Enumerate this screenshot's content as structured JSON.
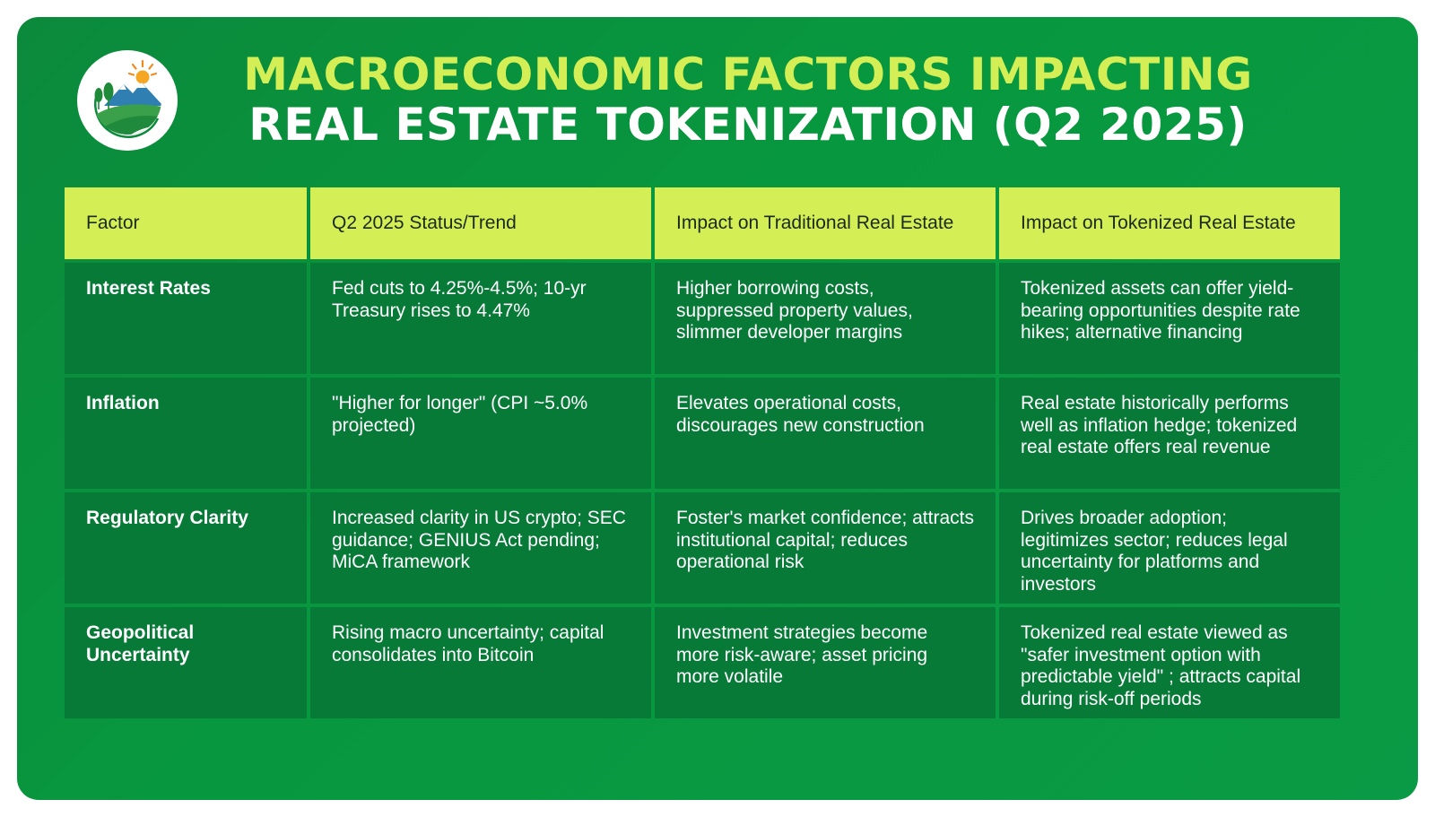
{
  "title": {
    "line1": "MACROECONOMIC FACTORS IMPACTING",
    "line2": "REAL ESTATE TOKENIZATION (Q2 2025)"
  },
  "logo": {
    "icon": "landscape-sun-logo-icon"
  },
  "colors": {
    "background": "#079a42",
    "header_fill": "#d4ef55",
    "row_fill": "#077a38",
    "title_accent": "#d4ef55"
  },
  "table": {
    "headers": [
      "Factor",
      "Q2 2025 Status/Trend",
      "Impact on Traditional Real Estate",
      "Impact on Tokenized Real Estate"
    ],
    "rows": [
      [
        "Interest Rates",
        "Fed cuts to 4.25%-4.5%; 10-yr Treasury rises to 4.47%",
        "Higher borrowing costs, suppressed property values, slimmer developer margins",
        "Tokenized assets can offer yield-bearing opportunities despite rate hikes; alternative financing"
      ],
      [
        "Inflation",
        "\"Higher for longer\" (CPI ~5.0% projected)",
        "Elevates operational costs, discourages new construction",
        "Real estate historically performs well as inflation hedge; tokenized real estate offers real revenue"
      ],
      [
        "Regulatory Clarity",
        "Increased clarity in US crypto; SEC guidance; GENIUS Act pending; MiCA framework",
        "Foster's market confidence; attracts institutional capital; reduces operational risk",
        "Drives broader adoption; legitimizes sector; reduces legal uncertainty for platforms and investors"
      ],
      [
        "Geopolitical Uncertainty",
        "Rising macro uncertainty; capital consolidates into Bitcoin",
        "Investment strategies become more risk-aware; asset pricing more volatile",
        "Tokenized real estate viewed as \"safer investment option with predictable yield\" ; attracts capital during risk-off periods"
      ]
    ]
  }
}
